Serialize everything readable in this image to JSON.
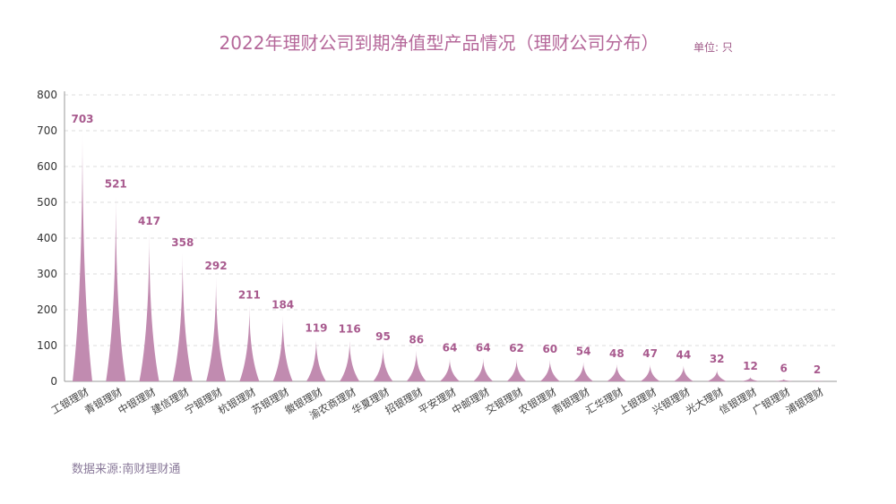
{
  "title": "2022年理财公司到期净值型产品情况（理财公司分布）",
  "unit": "单位: 只",
  "source": "数据来源:南财理财通",
  "colors": {
    "bar": "#c18bb0",
    "label": "#a85a8e",
    "grid": "#dddddd"
  },
  "chart_data": {
    "type": "bar",
    "title": "2022年理财公司到期净值型产品情况（理财公司分布）",
    "xlabel": "",
    "ylabel": "",
    "ylim": [
      0,
      800
    ],
    "yticks": [
      0,
      100,
      200,
      300,
      400,
      500,
      600,
      700,
      800
    ],
    "grid": true,
    "categories": [
      "工银理财",
      "青银理财",
      "中银理财",
      "建信理财",
      "宁银理财",
      "杭银理财",
      "苏银理财",
      "徽银理财",
      "渝农商理财",
      "华夏理财",
      "招银理财",
      "平安理财",
      "中邮理财",
      "交银理财",
      "农银理财",
      "南银理财",
      "汇华理财",
      "上银理财",
      "兴银理财",
      "光大理财",
      "信银理财",
      "广银理财",
      "浦银理财"
    ],
    "values": [
      703,
      521,
      417,
      358,
      292,
      211,
      184,
      119,
      116,
      95,
      86,
      64,
      64,
      62,
      60,
      54,
      48,
      47,
      44,
      32,
      12,
      6,
      2
    ]
  }
}
